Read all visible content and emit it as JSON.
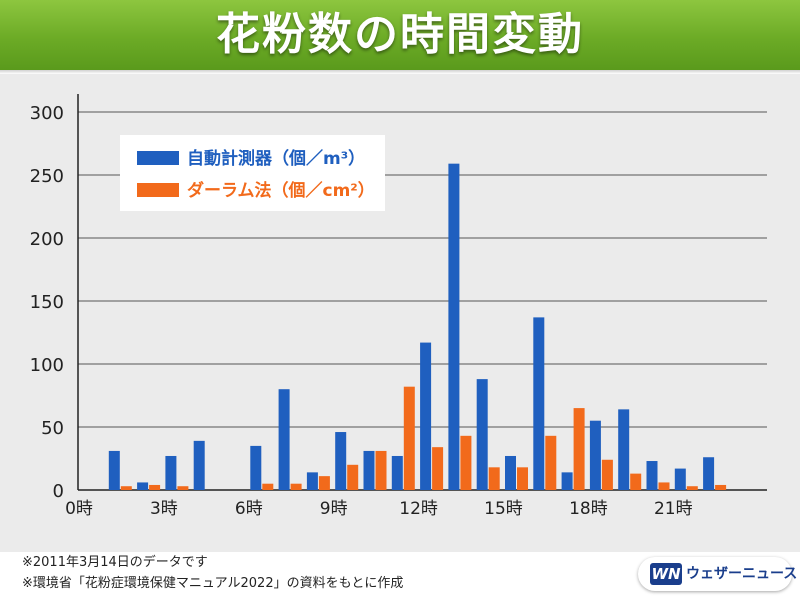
{
  "header": {
    "title": "花粉数の時間変動"
  },
  "chart_data": {
    "type": "bar",
    "x_tick_labels": [
      "0時",
      "3時",
      "6時",
      "9時",
      "12時",
      "15時",
      "18時",
      "21時"
    ],
    "ylim": [
      0,
      300
    ],
    "y_ticks": [
      "0",
      "50",
      "100",
      "150",
      "200",
      "250",
      "300"
    ],
    "grid": true,
    "legend_placement": "top-left",
    "series": [
      {
        "name": "自動計測器（個／m³）",
        "color": "#1f5fbf",
        "values": [
          null,
          31,
          6,
          27,
          39,
          null,
          35,
          80,
          14,
          46,
          31,
          27,
          117,
          259,
          88,
          27,
          137,
          14,
          55,
          64,
          23,
          17,
          26
        ]
      },
      {
        "name": "ダーラム法（個／cm²）",
        "color": "#f26a1b",
        "values": [
          null,
          3,
          4,
          3,
          null,
          null,
          5,
          5,
          11,
          20,
          31,
          82,
          34,
          43,
          18,
          18,
          43,
          65,
          24,
          13,
          6,
          3,
          4
        ]
      }
    ]
  },
  "notes": [
    "※2011年3月14日のデータです",
    "※環境省「花粉症環境保健マニュアル2022」の資料をもとに作成"
  ],
  "logo": {
    "mark": "WN",
    "text": "ウェザーニュース"
  }
}
